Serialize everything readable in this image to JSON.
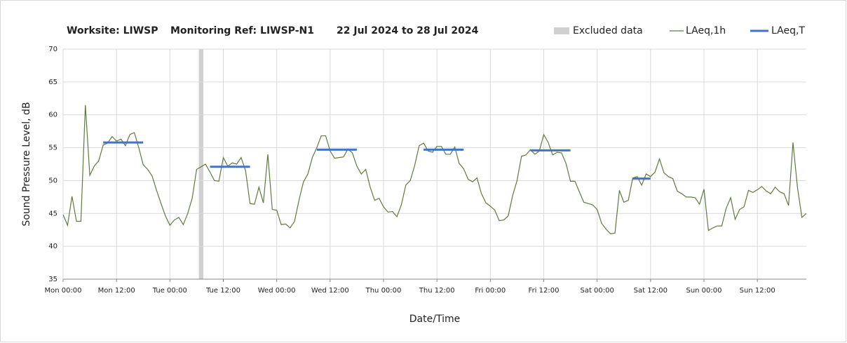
{
  "chart_data": {
    "type": "line",
    "title_parts": [
      "Worksite: LIWSP",
      "Monitoring Ref: LIWSP-N1",
      "22 Jul 2024 to 28 Jul 2024"
    ],
    "xlabel": "Date/Time",
    "ylabel": "Sound Pressure Level, dB",
    "xlim": [
      0,
      167
    ],
    "xticks": [
      {
        "value": 0,
        "label": "Mon 00:00"
      },
      {
        "value": 12,
        "label": "Mon 12:00"
      },
      {
        "value": 24,
        "label": "Tue 00:00"
      },
      {
        "value": 36,
        "label": "Tue 12:00"
      },
      {
        "value": 48,
        "label": "Wed 00:00"
      },
      {
        "value": 60,
        "label": "Wed 12:00"
      },
      {
        "value": 72,
        "label": "Thu 00:00"
      },
      {
        "value": 84,
        "label": "Thu 12:00"
      },
      {
        "value": 96,
        "label": "Fri 00:00"
      },
      {
        "value": 108,
        "label": "Fri 12:00"
      },
      {
        "value": 120,
        "label": "Sat 00:00"
      },
      {
        "value": 132,
        "label": "Sat 12:00"
      },
      {
        "value": 144,
        "label": "Sun 00:00"
      },
      {
        "value": 156,
        "label": "Sun 12:00"
      }
    ],
    "ylim": [
      35,
      70
    ],
    "yticks": [
      35,
      40,
      45,
      50,
      55,
      60,
      65,
      70
    ],
    "grid": true,
    "excluded": {
      "name": "Excluded data",
      "color": "#d0d0d0",
      "ranges": [
        [
          30.5,
          31.5
        ]
      ]
    },
    "series": [
      {
        "name": "LAeq,1h",
        "color": "#5f7a3f",
        "x": [
          0,
          1,
          2,
          3,
          4,
          5,
          6,
          7,
          8,
          9,
          10,
          11,
          12,
          13,
          14,
          15,
          16,
          17,
          18,
          19,
          20,
          21,
          22,
          23,
          24,
          25,
          26,
          27,
          28,
          29,
          30,
          31,
          32,
          33,
          34,
          35,
          36,
          37,
          38,
          39,
          40,
          41,
          42,
          43,
          44,
          45,
          46,
          47,
          48,
          49,
          50,
          51,
          52,
          53,
          54,
          55,
          56,
          57,
          58,
          59,
          60,
          61,
          62,
          63,
          64,
          65,
          66,
          67,
          68,
          69,
          70,
          71,
          72,
          73,
          74,
          75,
          76,
          77,
          78,
          79,
          80,
          81,
          82,
          83,
          84,
          85,
          86,
          87,
          88,
          89,
          90,
          91,
          92,
          93,
          94,
          95,
          96,
          97,
          98,
          99,
          100,
          101,
          102,
          103,
          104,
          105,
          106,
          107,
          108,
          109,
          110,
          111,
          112,
          113,
          114,
          115,
          116,
          117,
          118,
          119,
          120,
          121,
          122,
          123,
          124,
          125,
          126,
          127,
          128,
          129,
          130,
          131,
          132,
          133,
          134,
          135,
          136,
          137,
          138,
          139,
          140,
          141,
          142,
          143,
          144,
          145,
          146,
          147,
          148,
          149,
          150,
          151,
          152,
          153,
          154,
          155,
          156,
          157,
          158,
          159,
          160,
          161,
          162,
          163,
          164,
          165,
          166,
          167
        ],
        "values": [
          44.8,
          43.2,
          47.6,
          43.8,
          43.8,
          61.5,
          50.8,
          52.2,
          53,
          55.4,
          55.7,
          56.7,
          56,
          56.3,
          55.3,
          57,
          57.3,
          55,
          52.4,
          51.7,
          50.7,
          48.5,
          46.5,
          44.6,
          43.2,
          44,
          44.4,
          43.3,
          45,
          47.3,
          51.7,
          52.1,
          52.5,
          51.3,
          50,
          49.9,
          53.5,
          52.2,
          52.7,
          52.5,
          53.5,
          51.5,
          46.5,
          46.4,
          49,
          46.6,
          54,
          45.6,
          45.5,
          43.3,
          43.4,
          42.8,
          43.8,
          47,
          49.8,
          51,
          53.5,
          55,
          56.8,
          56.8,
          54.5,
          53.4,
          53.5,
          53.6,
          54.8,
          54.2,
          52.2,
          51,
          51.7,
          49,
          47,
          47.3,
          46,
          45.2,
          45.3,
          44.5,
          46.3,
          49.3,
          50,
          52.3,
          55.3,
          55.7,
          54.5,
          54.3,
          55.2,
          55.2,
          54,
          54,
          55.1,
          52.6,
          51.8,
          50.2,
          49.8,
          50.4,
          48,
          46.6,
          46.1,
          45.5,
          43.9,
          44,
          44.6,
          47.7,
          50,
          53.7,
          53.9,
          54.7,
          54,
          54.5,
          57,
          55.8,
          53.9,
          54.3,
          54.2,
          52.6,
          49.9,
          49.9,
          48.3,
          46.7,
          46.5,
          46.3,
          45.6,
          43.5,
          42.6,
          41.9,
          42,
          48.5,
          46.7,
          47,
          50.4,
          50.6,
          49.3,
          51,
          50.6,
          51.3,
          53.3,
          51.2,
          50.6,
          50.3,
          48.4,
          48,
          47.5,
          47.5,
          47.4,
          46.4,
          48.7,
          42.4,
          42.8,
          43.1,
          43.1,
          45.8,
          47.4,
          44.1,
          45.6,
          46,
          48.5,
          48.2,
          48.6,
          49.1,
          48.4,
          48,
          49,
          48.3,
          48,
          46.2,
          55.8,
          49,
          44.4,
          45
        ]
      },
      {
        "name": "LAeq,T",
        "color": "#4472c4",
        "segments": [
          {
            "start": 9,
            "end": 18,
            "value": 55.8
          },
          {
            "start": 33,
            "end": 42,
            "value": 52.1
          },
          {
            "start": 57,
            "end": 66,
            "value": 54.7
          },
          {
            "start": 81,
            "end": 90,
            "value": 54.7
          },
          {
            "start": 105,
            "end": 114,
            "value": 54.6
          },
          {
            "start": 128,
            "end": 132,
            "value": 50.3
          }
        ]
      }
    ]
  }
}
